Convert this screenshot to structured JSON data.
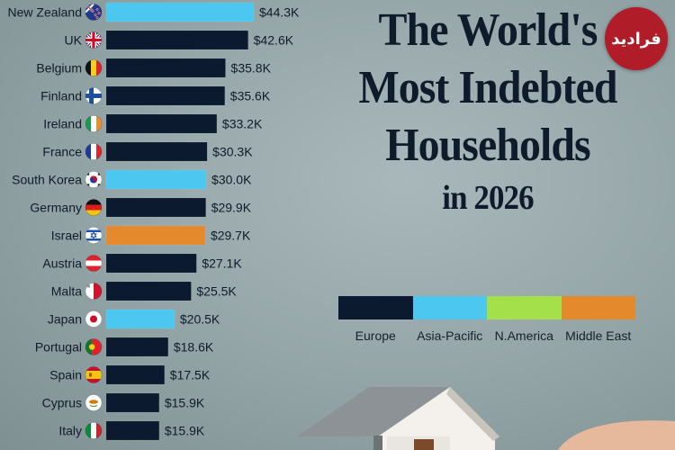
{
  "title_lines": [
    "The World's",
    "Most Indebted",
    "Households"
  ],
  "title_year_line": "in 2026",
  "logo_text": "فرادید",
  "colors": {
    "Europe": "#0b1a2e",
    "Asia-Pacific": "#4cc7ef",
    "N.America": "#a3e04a",
    "Middle East": "#e58a2c"
  },
  "legend": [
    "Europe",
    "Asia-Pacific",
    "N.America",
    "Middle East"
  ],
  "chart_data": {
    "type": "bar",
    "orientation": "horizontal",
    "unit": "USD per household",
    "categories": [
      "New Zealand",
      "UK",
      "Belgium",
      "Finland",
      "Ireland",
      "France",
      "South Korea",
      "Germany",
      "Israel",
      "Austria",
      "Malta",
      "Japan",
      "Portugal",
      "Spain",
      "Cyprus",
      "Italy"
    ],
    "values": [
      44300,
      42600,
      35800,
      35600,
      33200,
      30300,
      30000,
      29900,
      29700,
      27100,
      25500,
      20500,
      18600,
      17500,
      15900,
      15900
    ],
    "value_labels": [
      "$44.3K",
      "$42.6K",
      "$35.8K",
      "$35.6K",
      "$33.2K",
      "$30.3K",
      "$30.0K",
      "$29.9K",
      "$29.7K",
      "$27.1K",
      "$25.5K",
      "$20.5K",
      "$18.6K",
      "$17.5K",
      "$15.9K",
      "$15.9K"
    ],
    "regions": [
      "Asia-Pacific",
      "Europe",
      "Europe",
      "Europe",
      "Europe",
      "Europe",
      "Asia-Pacific",
      "Europe",
      "Middle East",
      "Europe",
      "Europe",
      "Asia-Pacific",
      "Europe",
      "Europe",
      "Europe",
      "Europe"
    ],
    "flags": [
      "nz-flag",
      "uk-flag",
      "belgium-flag",
      "finland-flag",
      "ireland-flag",
      "france-flag",
      "south-korea-flag",
      "germany-flag",
      "israel-flag",
      "austria-flag",
      "malta-flag",
      "japan-flag",
      "portugal-flag",
      "spain-flag",
      "cyprus-flag",
      "italy-flag"
    ],
    "xlim": [
      0,
      44300
    ],
    "grid": false
  }
}
